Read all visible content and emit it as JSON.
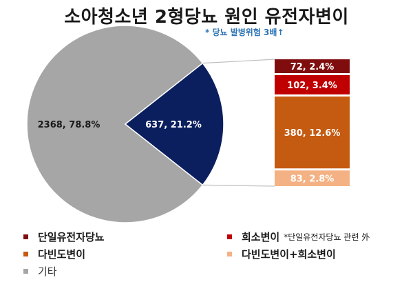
{
  "title": "소아청소년 2형당뇨 원인 유전자변이",
  "subtitle": "* 당뇨 발병위험 3배↑",
  "colors": {
    "single_gene": "#7f0d0d",
    "rare_variant": "#c00000",
    "polygenic": "#c55a11",
    "polygenic_rare": "#f4b183",
    "other": "#a6a6a6",
    "pie_highlight": "#0b1f5e"
  },
  "chart_data": [
    {
      "type": "pie",
      "slices": [
        {
          "label": "기타",
          "value": 2368,
          "percent": 78.8,
          "data_label": "2368, 78.8%",
          "color": "#a6a6a6"
        },
        {
          "label": "",
          "value": 637,
          "percent": 21.2,
          "data_label": "637, 21.2%",
          "color": "#0b1f5e"
        }
      ]
    },
    {
      "type": "bar",
      "stacked": true,
      "segments": [
        {
          "label": "단일유전자당뇨",
          "value": 72,
          "percent": 2.4,
          "data_label": "72, 2.4%",
          "color": "#7f0d0d"
        },
        {
          "label": "희소변이",
          "value": 102,
          "percent": 3.4,
          "data_label": "102, 3.4%",
          "color": "#c00000"
        },
        {
          "label": "다빈도변이",
          "value": 380,
          "percent": 12.6,
          "data_label": "380, 12.6%",
          "color": "#c55a11"
        },
        {
          "label": "다빈도변이+희소변이",
          "value": 83,
          "percent": 2.8,
          "data_label": "83, 2.8%",
          "color": "#f4b183"
        }
      ]
    }
  ],
  "legend": {
    "items": [
      {
        "label": "단일유전자당뇨"
      },
      {
        "label": "희소변이",
        "note": "*단일유전자당뇨 관련 外"
      },
      {
        "label": "다빈도변이"
      },
      {
        "label": "다빈도변이+희소변이"
      },
      {
        "label": "기타"
      }
    ]
  }
}
